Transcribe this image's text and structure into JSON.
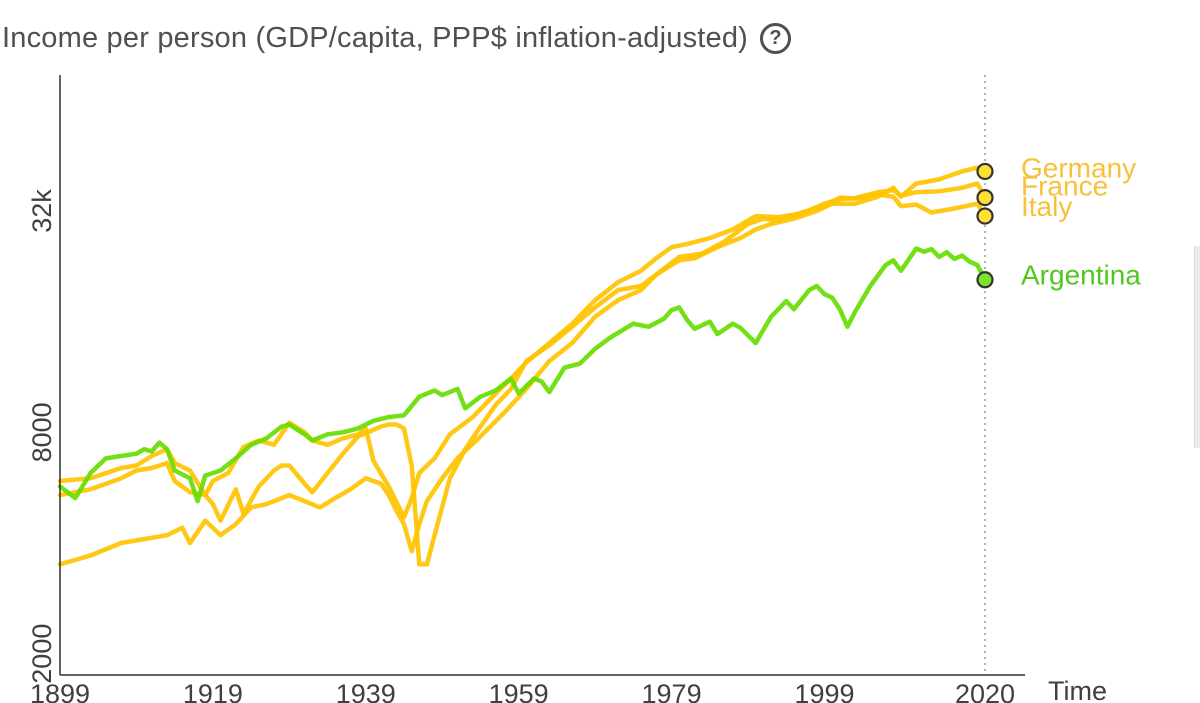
{
  "title": "Income per person (GDP/capita, PPP$ inflation-adjusted)",
  "help_symbol": "?",
  "chart_data": {
    "type": "line",
    "title": "Income per person (GDP/capita, PPP$ inflation-adjusted)",
    "xlabel": "Time",
    "ylabel": "",
    "x_scale": "linear",
    "y_scale": "log",
    "xlim": [
      1899,
      2020
    ],
    "ylim": [
      1750,
      75000
    ],
    "x_ticks": [
      1899,
      1919,
      1939,
      1959,
      1979,
      1999,
      2020
    ],
    "x_tick_labels": [
      "1899",
      "1919",
      "1939",
      "1959",
      "1979",
      "1999",
      "2020"
    ],
    "y_ticks": [
      2000,
      8000,
      32000
    ],
    "y_tick_labels": [
      "2000",
      "8000",
      "32k"
    ],
    "grid": false,
    "current_year_marker": 2020,
    "series": [
      {
        "name": "Germany",
        "color": "#FFC300",
        "points": [
          [
            1899,
            5400
          ],
          [
            1903,
            5600
          ],
          [
            1907,
            6000
          ],
          [
            1909,
            6300
          ],
          [
            1911,
            6400
          ],
          [
            1913,
            6600
          ],
          [
            1914,
            5900
          ],
          [
            1916,
            5500
          ],
          [
            1918,
            5400
          ],
          [
            1919,
            5100
          ],
          [
            1920,
            4600
          ],
          [
            1922,
            5600
          ],
          [
            1923,
            4800
          ],
          [
            1925,
            5700
          ],
          [
            1927,
            6300
          ],
          [
            1928,
            6500
          ],
          [
            1929,
            6500
          ],
          [
            1931,
            5800
          ],
          [
            1932,
            5500
          ],
          [
            1934,
            6200
          ],
          [
            1936,
            7000
          ],
          [
            1938,
            7800
          ],
          [
            1941,
            8300
          ],
          [
            1942,
            8400
          ],
          [
            1943,
            8400
          ],
          [
            1944,
            8200
          ],
          [
            1945,
            6500
          ],
          [
            1946,
            3500
          ],
          [
            1947,
            3500
          ],
          [
            1948,
            4200
          ],
          [
            1950,
            6000
          ],
          [
            1952,
            7200
          ],
          [
            1954,
            8300
          ],
          [
            1956,
            9500
          ],
          [
            1958,
            10500
          ],
          [
            1960,
            12500
          ],
          [
            1963,
            13800
          ],
          [
            1966,
            15500
          ],
          [
            1969,
            17500
          ],
          [
            1972,
            19500
          ],
          [
            1975,
            20000
          ],
          [
            1977,
            21500
          ],
          [
            1980,
            23500
          ],
          [
            1982,
            23800
          ],
          [
            1985,
            25500
          ],
          [
            1988,
            27000
          ],
          [
            1990,
            28500
          ],
          [
            1992,
            29500
          ],
          [
            1995,
            30500
          ],
          [
            1998,
            32000
          ],
          [
            2000,
            33500
          ],
          [
            2003,
            33500
          ],
          [
            2006,
            35000
          ],
          [
            2008,
            37000
          ],
          [
            2009,
            35000
          ],
          [
            2011,
            38000
          ],
          [
            2014,
            39000
          ],
          [
            2017,
            41000
          ],
          [
            2019,
            42000
          ],
          [
            2020,
            41000
          ]
        ]
      },
      {
        "name": "France",
        "color": "#FFC300",
        "points": [
          [
            1899,
            5900
          ],
          [
            1903,
            6000
          ],
          [
            1907,
            6400
          ],
          [
            1909,
            6500
          ],
          [
            1911,
            6900
          ],
          [
            1913,
            7200
          ],
          [
            1914,
            6600
          ],
          [
            1916,
            6300
          ],
          [
            1918,
            5400
          ],
          [
            1919,
            5900
          ],
          [
            1921,
            6200
          ],
          [
            1923,
            7300
          ],
          [
            1925,
            7600
          ],
          [
            1927,
            7400
          ],
          [
            1929,
            8500
          ],
          [
            1931,
            8000
          ],
          [
            1932,
            7600
          ],
          [
            1934,
            7400
          ],
          [
            1936,
            7700
          ],
          [
            1938,
            7900
          ],
          [
            1939,
            8200
          ],
          [
            1940,
            6700
          ],
          [
            1942,
            5700
          ],
          [
            1944,
            4700
          ],
          [
            1945,
            5300
          ],
          [
            1946,
            6200
          ],
          [
            1948,
            6800
          ],
          [
            1950,
            7900
          ],
          [
            1953,
            8800
          ],
          [
            1956,
            10200
          ],
          [
            1958,
            11200
          ],
          [
            1960,
            12400
          ],
          [
            1963,
            14000
          ],
          [
            1966,
            15800
          ],
          [
            1969,
            18300
          ],
          [
            1972,
            20500
          ],
          [
            1975,
            22000
          ],
          [
            1977,
            23800
          ],
          [
            1979,
            25500
          ],
          [
            1981,
            26000
          ],
          [
            1984,
            27000
          ],
          [
            1987,
            28500
          ],
          [
            1990,
            31000
          ],
          [
            1993,
            30800
          ],
          [
            1996,
            31500
          ],
          [
            1999,
            33500
          ],
          [
            2001,
            34500
          ],
          [
            2003,
            34700
          ],
          [
            2006,
            36000
          ],
          [
            2008,
            36500
          ],
          [
            2009,
            35200
          ],
          [
            2011,
            36000
          ],
          [
            2014,
            36200
          ],
          [
            2017,
            37000
          ],
          [
            2019,
            38000
          ],
          [
            2020,
            34800
          ]
        ]
      },
      {
        "name": "Italy",
        "color": "#FFC300",
        "points": [
          [
            1899,
            3500
          ],
          [
            1903,
            3700
          ],
          [
            1907,
            4000
          ],
          [
            1910,
            4100
          ],
          [
            1913,
            4200
          ],
          [
            1915,
            4400
          ],
          [
            1916,
            4000
          ],
          [
            1918,
            4600
          ],
          [
            1919,
            4400
          ],
          [
            1920,
            4200
          ],
          [
            1922,
            4500
          ],
          [
            1924,
            5000
          ],
          [
            1926,
            5100
          ],
          [
            1928,
            5300
          ],
          [
            1929,
            5400
          ],
          [
            1931,
            5200
          ],
          [
            1933,
            5000
          ],
          [
            1935,
            5300
          ],
          [
            1937,
            5600
          ],
          [
            1939,
            6000
          ],
          [
            1940,
            5900
          ],
          [
            1941,
            5800
          ],
          [
            1942,
            5400
          ],
          [
            1943,
            4900
          ],
          [
            1944,
            4500
          ],
          [
            1945,
            3800
          ],
          [
            1946,
            4500
          ],
          [
            1947,
            5200
          ],
          [
            1949,
            6000
          ],
          [
            1951,
            6800
          ],
          [
            1954,
            7800
          ],
          [
            1957,
            9000
          ],
          [
            1960,
            10500
          ],
          [
            1963,
            12500
          ],
          [
            1966,
            14000
          ],
          [
            1969,
            16500
          ],
          [
            1972,
            18300
          ],
          [
            1975,
            19500
          ],
          [
            1977,
            21500
          ],
          [
            1980,
            24000
          ],
          [
            1983,
            24500
          ],
          [
            1986,
            26500
          ],
          [
            1989,
            29500
          ],
          [
            1991,
            30500
          ],
          [
            1993,
            30200
          ],
          [
            1996,
            31700
          ],
          [
            1999,
            33000
          ],
          [
            2001,
            34800
          ],
          [
            2003,
            34600
          ],
          [
            2006,
            35500
          ],
          [
            2008,
            35000
          ],
          [
            2009,
            33000
          ],
          [
            2011,
            33300
          ],
          [
            2013,
            31700
          ],
          [
            2016,
            32500
          ],
          [
            2019,
            33500
          ],
          [
            2020,
            31000
          ]
        ]
      },
      {
        "name": "Argentina",
        "color": "#66DD00",
        "points": [
          [
            1899,
            5700
          ],
          [
            1901,
            5300
          ],
          [
            1903,
            6200
          ],
          [
            1905,
            6800
          ],
          [
            1907,
            6900
          ],
          [
            1909,
            7000
          ],
          [
            1910,
            7200
          ],
          [
            1911,
            7100
          ],
          [
            1912,
            7500
          ],
          [
            1913,
            7200
          ],
          [
            1914,
            6300
          ],
          [
            1916,
            6000
          ],
          [
            1917,
            5200
          ],
          [
            1918,
            6100
          ],
          [
            1920,
            6300
          ],
          [
            1922,
            6800
          ],
          [
            1924,
            7400
          ],
          [
            1926,
            7700
          ],
          [
            1928,
            8300
          ],
          [
            1929,
            8400
          ],
          [
            1931,
            7900
          ],
          [
            1932,
            7600
          ],
          [
            1934,
            7900
          ],
          [
            1936,
            8000
          ],
          [
            1938,
            8200
          ],
          [
            1940,
            8600
          ],
          [
            1942,
            8800
          ],
          [
            1944,
            8900
          ],
          [
            1946,
            10000
          ],
          [
            1948,
            10400
          ],
          [
            1949,
            10100
          ],
          [
            1951,
            10500
          ],
          [
            1952,
            9300
          ],
          [
            1954,
            10000
          ],
          [
            1956,
            10400
          ],
          [
            1958,
            11200
          ],
          [
            1959,
            10200
          ],
          [
            1961,
            11200
          ],
          [
            1962,
            11000
          ],
          [
            1963,
            10300
          ],
          [
            1965,
            12000
          ],
          [
            1967,
            12300
          ],
          [
            1969,
            13500
          ],
          [
            1971,
            14500
          ],
          [
            1974,
            15800
          ],
          [
            1976,
            15500
          ],
          [
            1978,
            16300
          ],
          [
            1979,
            17200
          ],
          [
            1980,
            17500
          ],
          [
            1981,
            16200
          ],
          [
            1982,
            15300
          ],
          [
            1984,
            16000
          ],
          [
            1985,
            14800
          ],
          [
            1987,
            15800
          ],
          [
            1988,
            15400
          ],
          [
            1990,
            14000
          ],
          [
            1992,
            16500
          ],
          [
            1994,
            18200
          ],
          [
            1995,
            17300
          ],
          [
            1997,
            19500
          ],
          [
            1998,
            20000
          ],
          [
            1999,
            19000
          ],
          [
            2000,
            18600
          ],
          [
            2001,
            17300
          ],
          [
            2002,
            15500
          ],
          [
            2003,
            17000
          ],
          [
            2005,
            20000
          ],
          [
            2007,
            22800
          ],
          [
            2008,
            23500
          ],
          [
            2009,
            22000
          ],
          [
            2011,
            25300
          ],
          [
            2012,
            24800
          ],
          [
            2013,
            25200
          ],
          [
            2014,
            24000
          ],
          [
            2015,
            24700
          ],
          [
            2016,
            23700
          ],
          [
            2017,
            24200
          ],
          [
            2018,
            23300
          ],
          [
            2019,
            22800
          ],
          [
            2020,
            20800
          ]
        ]
      }
    ],
    "end_labels": [
      {
        "name": "Germany",
        "label_value": 42000
      },
      {
        "name": "France",
        "label_value": 37500
      },
      {
        "name": "Italy",
        "label_value": 33000
      },
      {
        "name": "Argentina",
        "label_value": 21500
      }
    ],
    "label_color_europe": "#F9C03A",
    "label_color_argentina": "#50C71E",
    "marker_fill_europe": "#FFE033",
    "marker_fill_argentina": "#7CE32A",
    "axis_color": "#303030",
    "text_color": "#505050"
  }
}
